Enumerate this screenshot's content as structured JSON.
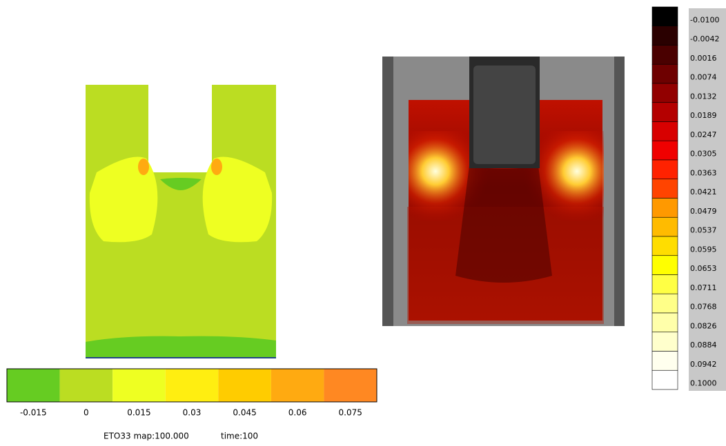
{
  "left_map": {
    "colorbar": {
      "colors": [
        "#66cc22",
        "#bbdd22",
        "#eeff22",
        "#ffee11",
        "#ffcc00",
        "#ffaa11",
        "#ff8822"
      ],
      "labels": [
        "-0.015",
        "0",
        "0.015",
        "0.03",
        "0.045",
        "0.06",
        "0.075"
      ]
    },
    "caption": {
      "map": "ETO33 map:100.000",
      "time": "time:100"
    }
  },
  "right_map": {
    "colorbar": {
      "colors": [
        "#000000",
        "#2a0000",
        "#4a0000",
        "#6e0000",
        "#920000",
        "#b40000",
        "#d80000",
        "#f00000",
        "#ff2200",
        "#ff4400",
        "#ff6600",
        "#ff9900",
        "#ffbb00",
        "#ffdd00",
        "#ffff00",
        "#ffff44",
        "#ffff88",
        "#ffffaa",
        "#ffffcc",
        "#ffffee",
        "#ffffff"
      ],
      "labels": [
        "-0.0100",
        "-0.0042",
        "0.0016",
        "0.0074",
        "0.0132",
        "0.0189",
        "0.0247",
        "0.0305",
        "0.0363",
        "0.0421",
        "0.0479",
        "0.0537",
        "0.0595",
        "0.0653",
        "0.0711",
        "0.0768",
        "0.0826",
        "0.0884",
        "0.0942",
        "0.1000"
      ]
    }
  }
}
